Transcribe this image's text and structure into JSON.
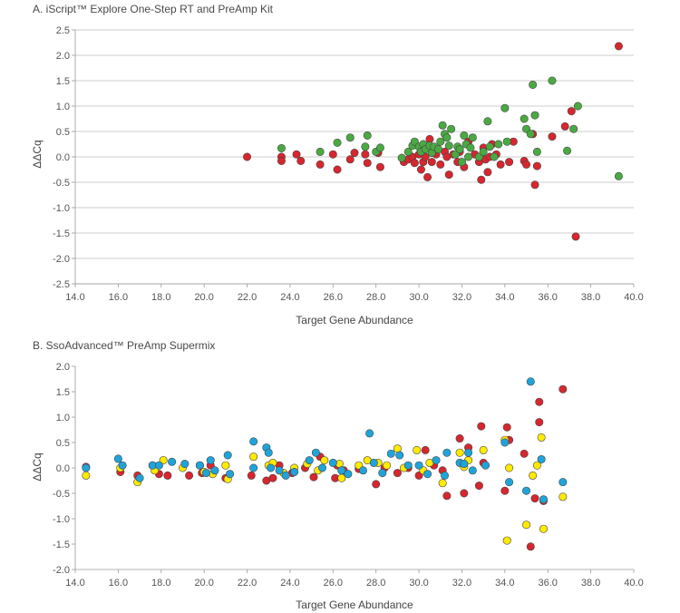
{
  "chart_data": [
    {
      "type": "scatter",
      "title": "A. iScript™ Explore One-Step RT and PreAmp Kit",
      "xlabel": "Target Gene Abundance",
      "ylabel": "ΔΔCq",
      "xlim": [
        14.0,
        40.0
      ],
      "ylim": [
        -2.5,
        2.5
      ],
      "xticks": [
        14.0,
        16.0,
        18.0,
        20.0,
        22.0,
        24.0,
        26.0,
        28.0,
        30.0,
        32.0,
        34.0,
        36.0,
        38.0,
        40.0
      ],
      "yticks": [
        2.5,
        2.0,
        1.5,
        1.0,
        0.5,
        0.0,
        -0.5,
        -1.0,
        -1.5,
        -2.0,
        -2.5
      ],
      "grid": "horizontal",
      "series": [
        {
          "color": "#d7262e",
          "points": [
            [
              22.0,
              0.0
            ],
            [
              23.6,
              0.0
            ],
            [
              23.6,
              -0.08
            ],
            [
              24.3,
              0.05
            ],
            [
              24.5,
              -0.08
            ],
            [
              25.4,
              -0.15
            ],
            [
              26.0,
              0.05
            ],
            [
              26.2,
              -0.25
            ],
            [
              26.8,
              -0.05
            ],
            [
              27.0,
              0.08
            ],
            [
              27.5,
              0.05
            ],
            [
              27.6,
              -0.12
            ],
            [
              28.2,
              -0.2
            ],
            [
              28.1,
              0.08
            ],
            [
              29.3,
              -0.1
            ],
            [
              29.5,
              -0.05
            ],
            [
              29.7,
              0.0
            ],
            [
              29.8,
              -0.12
            ],
            [
              30.0,
              0.05
            ],
            [
              30.1,
              -0.25
            ],
            [
              30.2,
              -0.1
            ],
            [
              30.3,
              0.0
            ],
            [
              30.4,
              -0.4
            ],
            [
              30.5,
              0.35
            ],
            [
              30.6,
              -0.1
            ],
            [
              30.8,
              0.05
            ],
            [
              31.0,
              -0.15
            ],
            [
              31.2,
              0.1
            ],
            [
              31.3,
              0.0
            ],
            [
              31.4,
              -0.35
            ],
            [
              31.6,
              0.05
            ],
            [
              31.8,
              -0.1
            ],
            [
              31.9,
              0.1
            ],
            [
              32.1,
              -0.2
            ],
            [
              32.3,
              0.3
            ],
            [
              32.6,
              0.05
            ],
            [
              32.8,
              -0.1
            ],
            [
              32.9,
              -0.45
            ],
            [
              33.0,
              0.18
            ],
            [
              33.1,
              -0.05
            ],
            [
              33.2,
              -0.3
            ],
            [
              33.3,
              0.0
            ],
            [
              33.4,
              0.25
            ],
            [
              33.6,
              0.05
            ],
            [
              33.8,
              -0.15
            ],
            [
              34.2,
              -0.1
            ],
            [
              34.4,
              0.3
            ],
            [
              34.9,
              -0.08
            ],
            [
              35.0,
              -0.15
            ],
            [
              35.3,
              0.45
            ],
            [
              35.4,
              -0.55
            ],
            [
              35.5,
              -0.18
            ],
            [
              36.2,
              0.4
            ],
            [
              36.8,
              0.6
            ],
            [
              37.1,
              0.9
            ],
            [
              37.3,
              -1.57
            ],
            [
              39.3,
              2.18
            ]
          ]
        },
        {
          "color": "#4aaa42",
          "points": [
            [
              23.6,
              0.17
            ],
            [
              25.4,
              0.1
            ],
            [
              26.2,
              0.28
            ],
            [
              26.8,
              0.38
            ],
            [
              27.5,
              0.2
            ],
            [
              27.6,
              0.42
            ],
            [
              28.0,
              0.1
            ],
            [
              28.2,
              0.18
            ],
            [
              29.2,
              -0.02
            ],
            [
              29.5,
              0.1
            ],
            [
              29.7,
              0.22
            ],
            [
              29.8,
              0.3
            ],
            [
              30.0,
              0.2
            ],
            [
              30.1,
              0.1
            ],
            [
              30.2,
              0.25
            ],
            [
              30.3,
              0.15
            ],
            [
              30.5,
              0.22
            ],
            [
              30.6,
              0.08
            ],
            [
              30.7,
              0.2
            ],
            [
              30.9,
              0.15
            ],
            [
              31.0,
              0.3
            ],
            [
              31.1,
              0.62
            ],
            [
              31.2,
              0.45
            ],
            [
              31.3,
              0.38
            ],
            [
              31.4,
              0.22
            ],
            [
              31.5,
              0.55
            ],
            [
              31.7,
              0.05
            ],
            [
              31.8,
              0.2
            ],
            [
              31.9,
              0.15
            ],
            [
              32.0,
              -0.1
            ],
            [
              32.1,
              0.42
            ],
            [
              32.2,
              0.25
            ],
            [
              32.3,
              0.0
            ],
            [
              32.4,
              0.18
            ],
            [
              32.5,
              0.38
            ],
            [
              32.8,
              0.0
            ],
            [
              33.0,
              0.1
            ],
            [
              33.2,
              0.7
            ],
            [
              33.3,
              0.2
            ],
            [
              33.5,
              0.0
            ],
            [
              33.7,
              0.25
            ],
            [
              34.0,
              0.96
            ],
            [
              34.1,
              0.3
            ],
            [
              34.9,
              0.75
            ],
            [
              35.0,
              0.55
            ],
            [
              35.2,
              0.45
            ],
            [
              35.3,
              1.42
            ],
            [
              35.4,
              0.82
            ],
            [
              35.5,
              0.1
            ],
            [
              36.2,
              1.5
            ],
            [
              36.9,
              0.12
            ],
            [
              37.2,
              0.55
            ],
            [
              37.4,
              1.0
            ],
            [
              39.3,
              -0.38
            ]
          ]
        }
      ]
    },
    {
      "type": "scatter",
      "title": "B. SsoAdvanced™ PreAmp Supermix",
      "xlabel": "Target Gene Abundance",
      "ylabel": "ΔΔCq",
      "xlim": [
        14.0,
        40.0
      ],
      "ylim": [
        -2.0,
        2.0
      ],
      "xticks": [
        14.0,
        16.0,
        18.0,
        20.0,
        22.0,
        24.0,
        26.0,
        28.0,
        30.0,
        32.0,
        34.0,
        36.0,
        38.0,
        40.0
      ],
      "yticks": [
        2.0,
        1.5,
        1.0,
        0.5,
        0.0,
        -0.5,
        -1.0,
        -1.5,
        -2.0
      ],
      "grid": "none",
      "series": [
        {
          "color": "#d7262e",
          "points": [
            [
              14.5,
              0.02
            ],
            [
              16.1,
              -0.08
            ],
            [
              16.9,
              -0.15
            ],
            [
              17.6,
              0.05
            ],
            [
              17.9,
              -0.12
            ],
            [
              18.3,
              -0.15
            ],
            [
              19.3,
              -0.15
            ],
            [
              19.9,
              -0.1
            ],
            [
              20.3,
              0.05
            ],
            [
              21.0,
              -0.2
            ],
            [
              22.2,
              -0.15
            ],
            [
              22.9,
              -0.25
            ],
            [
              23.2,
              -0.2
            ],
            [
              23.5,
              0.05
            ],
            [
              24.1,
              -0.1
            ],
            [
              24.7,
              0.0
            ],
            [
              25.1,
              -0.18
            ],
            [
              25.4,
              0.22
            ],
            [
              26.1,
              -0.2
            ],
            [
              26.2,
              0.05
            ],
            [
              26.5,
              -0.05
            ],
            [
              27.2,
              -0.02
            ],
            [
              28.0,
              -0.32
            ],
            [
              28.4,
              0.0
            ],
            [
              29.0,
              -0.1
            ],
            [
              29.5,
              0.0
            ],
            [
              30.0,
              -0.15
            ],
            [
              30.3,
              0.35
            ],
            [
              30.7,
              0.05
            ],
            [
              31.1,
              -0.05
            ],
            [
              31.3,
              -0.55
            ],
            [
              31.9,
              0.58
            ],
            [
              32.1,
              -0.5
            ],
            [
              32.3,
              0.4
            ],
            [
              32.8,
              -0.35
            ],
            [
              32.9,
              0.82
            ],
            [
              33.0,
              0.1
            ],
            [
              34.0,
              -0.45
            ],
            [
              34.1,
              0.8
            ],
            [
              34.2,
              0.55
            ],
            [
              34.9,
              0.28
            ],
            [
              35.2,
              -1.55
            ],
            [
              35.4,
              -0.6
            ],
            [
              35.6,
              1.3
            ],
            [
              35.6,
              0.9
            ],
            [
              35.8,
              -0.65
            ],
            [
              36.7,
              1.55
            ]
          ]
        },
        {
          "color": "#ffea00",
          "points": [
            [
              14.5,
              -0.15
            ],
            [
              16.1,
              0.0
            ],
            [
              16.9,
              -0.28
            ],
            [
              17.7,
              -0.05
            ],
            [
              18.1,
              0.15
            ],
            [
              19.0,
              0.0
            ],
            [
              19.8,
              0.05
            ],
            [
              20.0,
              -0.08
            ],
            [
              20.4,
              -0.12
            ],
            [
              21.0,
              0.05
            ],
            [
              21.1,
              -0.22
            ],
            [
              22.3,
              0.22
            ],
            [
              23.0,
              0.05
            ],
            [
              23.2,
              0.1
            ],
            [
              23.7,
              -0.1
            ],
            [
              24.2,
              0.0
            ],
            [
              24.8,
              0.08
            ],
            [
              25.3,
              -0.05
            ],
            [
              25.6,
              0.15
            ],
            [
              26.3,
              0.08
            ],
            [
              26.4,
              -0.2
            ],
            [
              27.2,
              0.05
            ],
            [
              27.6,
              0.15
            ],
            [
              28.1,
              0.1
            ],
            [
              28.5,
              0.05
            ],
            [
              29.0,
              0.38
            ],
            [
              29.3,
              0.0
            ],
            [
              29.9,
              0.35
            ],
            [
              30.2,
              -0.05
            ],
            [
              30.5,
              0.1
            ],
            [
              31.1,
              -0.3
            ],
            [
              31.9,
              0.3
            ],
            [
              32.1,
              0.02
            ],
            [
              32.3,
              0.15
            ],
            [
              33.0,
              0.35
            ],
            [
              34.0,
              0.55
            ],
            [
              34.1,
              -1.43
            ],
            [
              34.2,
              0.0
            ],
            [
              35.0,
              -1.12
            ],
            [
              35.3,
              -0.15
            ],
            [
              35.5,
              0.05
            ],
            [
              35.7,
              0.6
            ],
            [
              35.8,
              -1.2
            ],
            [
              36.7,
              -0.57
            ]
          ]
        },
        {
          "color": "#1fa4da",
          "points": [
            [
              14.5,
              0.0
            ],
            [
              16.0,
              0.18
            ],
            [
              16.2,
              0.05
            ],
            [
              17.0,
              -0.2
            ],
            [
              17.6,
              0.05
            ],
            [
              17.9,
              0.05
            ],
            [
              18.5,
              0.12
            ],
            [
              19.1,
              0.08
            ],
            [
              19.8,
              0.05
            ],
            [
              20.1,
              -0.1
            ],
            [
              20.3,
              0.15
            ],
            [
              20.5,
              -0.05
            ],
            [
              21.1,
              0.25
            ],
            [
              21.2,
              -0.12
            ],
            [
              22.3,
              0.52
            ],
            [
              22.3,
              0.0
            ],
            [
              22.9,
              0.4
            ],
            [
              23.0,
              0.3
            ],
            [
              23.1,
              0.0
            ],
            [
              23.5,
              -0.05
            ],
            [
              23.8,
              -0.15
            ],
            [
              24.2,
              -0.08
            ],
            [
              24.9,
              0.15
            ],
            [
              25.2,
              0.3
            ],
            [
              25.5,
              0.0
            ],
            [
              26.0,
              0.1
            ],
            [
              26.4,
              -0.05
            ],
            [
              26.7,
              -0.12
            ],
            [
              27.4,
              -0.05
            ],
            [
              27.7,
              0.68
            ],
            [
              27.9,
              0.1
            ],
            [
              28.3,
              -0.1
            ],
            [
              28.7,
              0.28
            ],
            [
              29.1,
              0.25
            ],
            [
              29.5,
              0.05
            ],
            [
              30.0,
              0.05
            ],
            [
              30.4,
              -0.12
            ],
            [
              30.8,
              0.15
            ],
            [
              31.2,
              -0.15
            ],
            [
              31.3,
              0.3
            ],
            [
              31.9,
              0.1
            ],
            [
              32.1,
              0.08
            ],
            [
              32.3,
              0.3
            ],
            [
              32.5,
              -0.05
            ],
            [
              33.1,
              0.05
            ],
            [
              34.0,
              0.5
            ],
            [
              34.2,
              -0.28
            ],
            [
              35.0,
              -0.45
            ],
            [
              35.2,
              1.7
            ],
            [
              35.7,
              0.17
            ],
            [
              35.8,
              -0.62
            ],
            [
              36.7,
              -0.28
            ]
          ]
        }
      ]
    }
  ]
}
